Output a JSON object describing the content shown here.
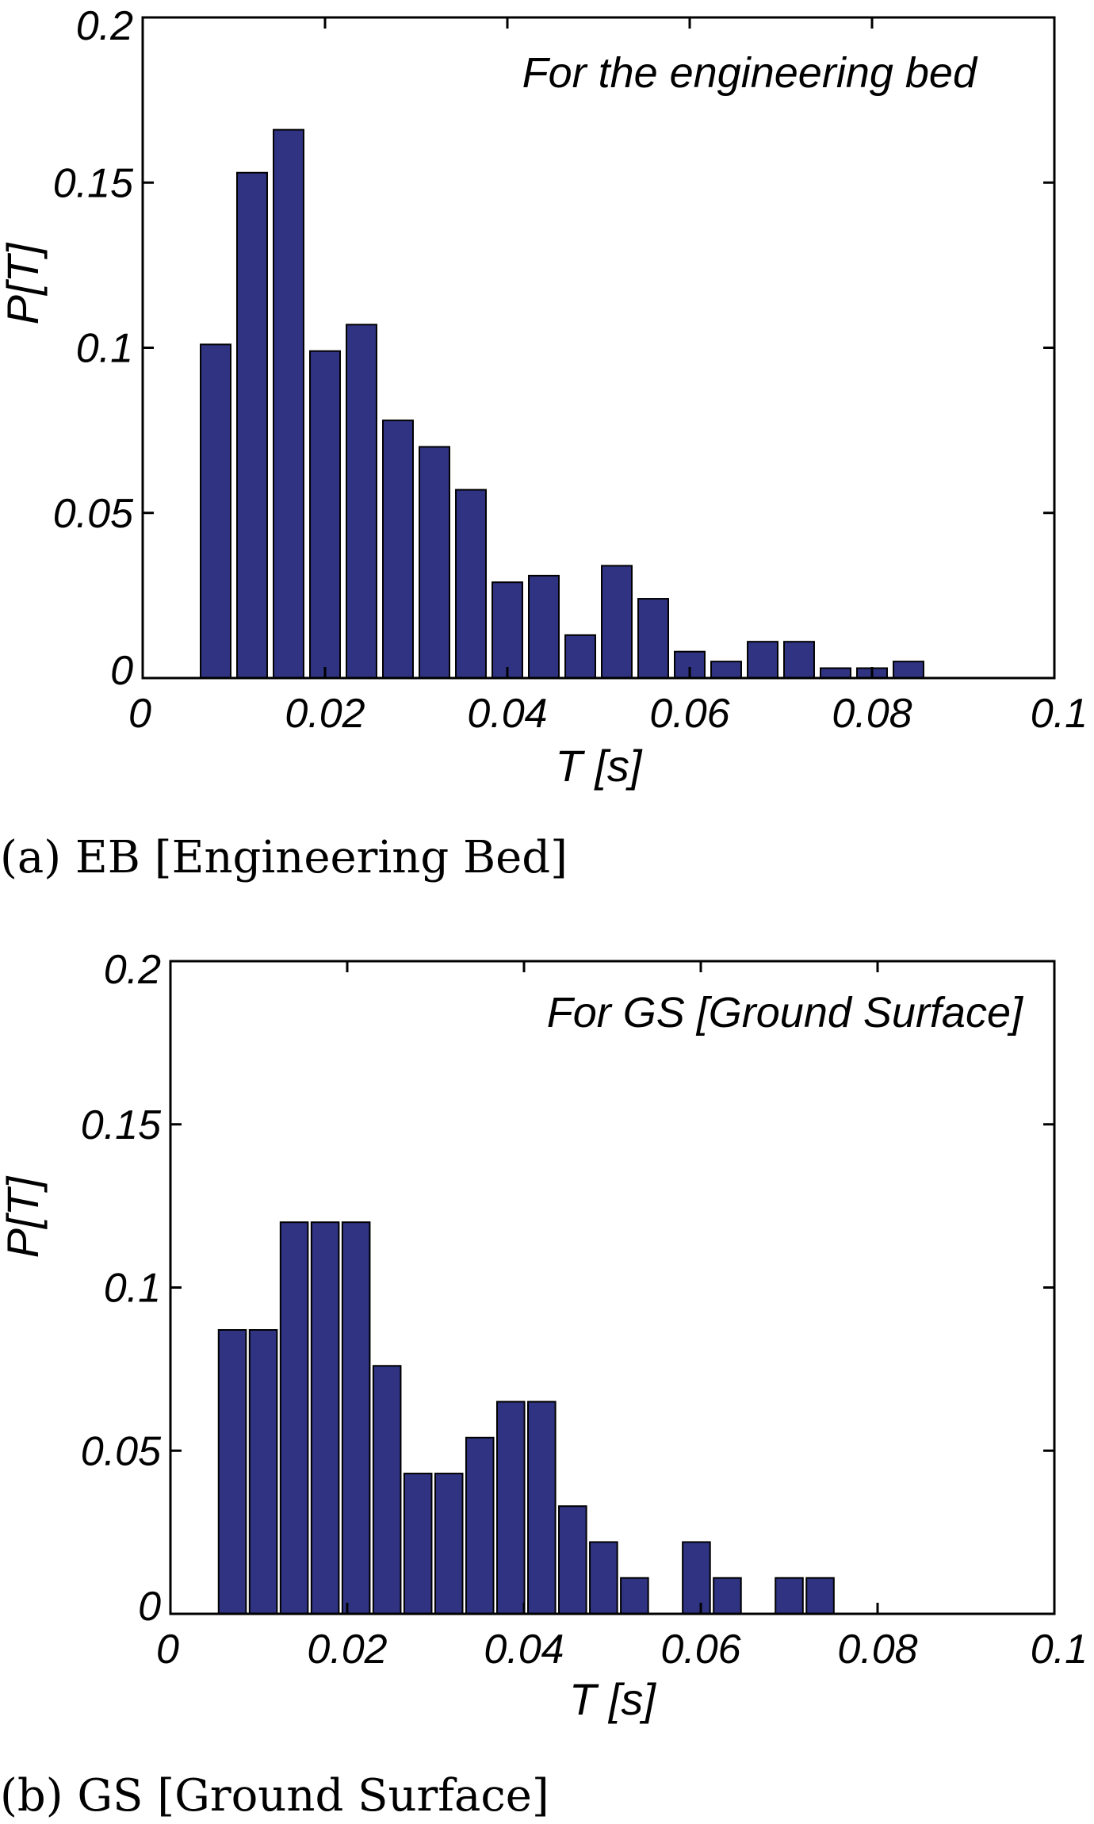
{
  "chart_data": [
    {
      "type": "bar",
      "title": "",
      "annotation": "For the engineering bed",
      "caption": "(a) EB [Engineering Bed]",
      "xlabel": "T [s]",
      "ylabel": "P[T]",
      "xlim": [
        0,
        0.1
      ],
      "ylim": [
        0,
        0.2
      ],
      "x_ticks": [
        "0",
        "0.02",
        "0.04",
        "0.06",
        "0.08",
        "0.1"
      ],
      "y_ticks": [
        "0",
        "0.05",
        "0.1",
        "0.15",
        "0.2"
      ],
      "bar_width": 0.0033,
      "grid": false,
      "x": [
        0.008,
        0.012,
        0.016,
        0.02,
        0.024,
        0.028,
        0.032,
        0.036,
        0.04,
        0.044,
        0.048,
        0.052,
        0.056,
        0.06,
        0.064,
        0.068,
        0.072,
        0.076,
        0.08,
        0.084
      ],
      "values": [
        0.101,
        0.153,
        0.166,
        0.099,
        0.107,
        0.078,
        0.07,
        0.057,
        0.029,
        0.031,
        0.013,
        0.034,
        0.024,
        0.008,
        0.005,
        0.011,
        0.011,
        0.003,
        0.003,
        0.005
      ]
    },
    {
      "type": "bar",
      "title": "",
      "annotation": "For GS [Ground Surface]",
      "caption": "(b) GS [Ground Surface]",
      "xlabel": "T [s]",
      "ylabel": "P[T]",
      "xlim": [
        0,
        0.1
      ],
      "ylim": [
        0,
        0.2
      ],
      "x_ticks": [
        "0",
        "0.02",
        "0.04",
        "0.06",
        "0.08",
        "0.1"
      ],
      "y_ticks": [
        "0",
        "0.05",
        "0.1",
        "0.15",
        "0.2"
      ],
      "bar_width": 0.0031,
      "grid": false,
      "x": [
        0.007,
        0.0105,
        0.014,
        0.0175,
        0.021,
        0.0245,
        0.028,
        0.0315,
        0.035,
        0.0385,
        0.042,
        0.0455,
        0.049,
        0.0525,
        0.056,
        0.0595,
        0.063,
        0.0665,
        0.07,
        0.0735,
        0.077
      ],
      "values": [
        0.087,
        0.087,
        0.12,
        0.12,
        0.12,
        0.076,
        0.043,
        0.043,
        0.054,
        0.065,
        0.065,
        0.033,
        0.022,
        0.011,
        0,
        0.022,
        0.011,
        0,
        0.011,
        0.011,
        0
      ]
    }
  ]
}
